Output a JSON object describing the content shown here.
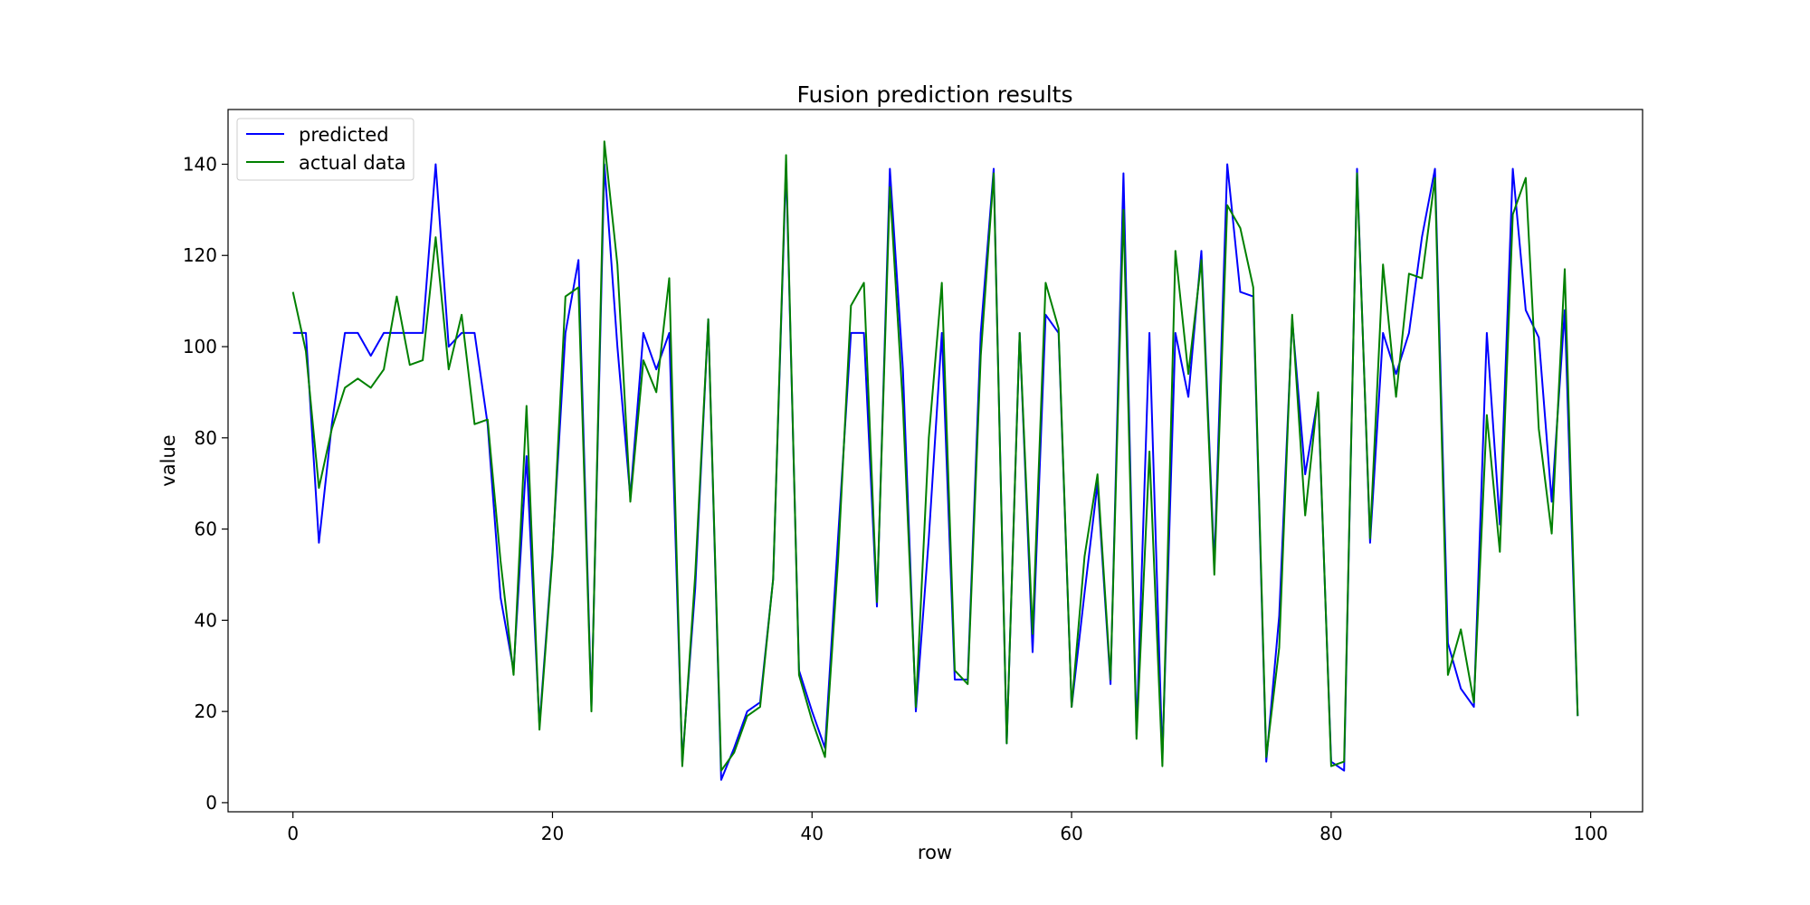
{
  "chart_data": {
    "type": "line",
    "title": "Fusion prediction results",
    "xlabel": "row",
    "ylabel": "value",
    "xlim": [
      -5,
      104
    ],
    "ylim": [
      -2,
      152
    ],
    "xticks": [
      0,
      20,
      40,
      60,
      80,
      100
    ],
    "yticks": [
      0,
      20,
      40,
      60,
      80,
      100,
      120,
      140
    ],
    "grid": false,
    "legend_position": "top-left",
    "x": [
      0,
      1,
      2,
      3,
      4,
      5,
      6,
      7,
      8,
      9,
      10,
      11,
      12,
      13,
      14,
      15,
      16,
      17,
      18,
      19,
      20,
      21,
      22,
      23,
      24,
      25,
      26,
      27,
      28,
      29,
      30,
      31,
      32,
      33,
      34,
      35,
      36,
      37,
      38,
      39,
      40,
      41,
      42,
      43,
      44,
      45,
      46,
      47,
      48,
      49,
      50,
      51,
      52,
      53,
      54,
      55,
      56,
      57,
      58,
      59,
      60,
      61,
      62,
      63,
      64,
      65,
      66,
      67,
      68,
      69,
      70,
      71,
      72,
      73,
      74,
      75,
      76,
      77,
      78,
      79,
      80,
      81,
      82,
      83,
      84,
      85,
      86,
      87,
      88,
      89,
      90,
      91,
      92,
      93,
      94,
      95,
      96,
      97,
      98,
      99
    ],
    "series": [
      {
        "name": "predicted",
        "color": "#0000ff",
        "values": [
          103,
          103,
          57,
          83,
          103,
          103,
          98,
          103,
          103,
          103,
          103,
          140,
          100,
          103,
          103,
          83,
          45,
          29,
          76,
          17,
          55,
          103,
          119,
          21,
          140,
          100,
          67,
          103,
          95,
          103,
          9,
          47,
          106,
          5,
          12,
          20,
          22,
          49,
          140,
          29,
          20,
          12,
          58,
          103,
          103,
          43,
          139,
          95,
          20,
          58,
          103,
          27,
          27,
          103,
          139,
          13,
          103,
          33,
          107,
          103,
          21,
          46,
          70,
          26,
          138,
          15,
          103,
          10,
          103,
          89,
          121,
          52,
          140,
          112,
          111,
          9,
          41,
          106,
          72,
          89,
          9,
          7,
          139,
          57,
          103,
          94,
          103,
          124,
          139,
          35,
          25,
          21,
          103,
          61,
          139,
          108,
          102,
          66,
          108,
          19
        ]
      },
      {
        "name": "actual data",
        "color": "#008000",
        "values": [
          112,
          99,
          69,
          82,
          91,
          93,
          91,
          95,
          111,
          96,
          97,
          124,
          95,
          107,
          83,
          84,
          53,
          28,
          87,
          16,
          54,
          111,
          113,
          20,
          145,
          118,
          66,
          97,
          90,
          115,
          8,
          50,
          106,
          7,
          11,
          19,
          21,
          49,
          142,
          28,
          18,
          10,
          53,
          109,
          114,
          44,
          135,
          87,
          21,
          80,
          114,
          29,
          26,
          98,
          138,
          13,
          103,
          37,
          114,
          104,
          21,
          54,
          72,
          27,
          130,
          14,
          77,
          8,
          121,
          94,
          119,
          50,
          131,
          126,
          113,
          10,
          34,
          107,
          63,
          90,
          8,
          9,
          138,
          58,
          118,
          89,
          116,
          115,
          137,
          28,
          38,
          22,
          85,
          55,
          129,
          137,
          82,
          59,
          117,
          19
        ]
      }
    ]
  }
}
